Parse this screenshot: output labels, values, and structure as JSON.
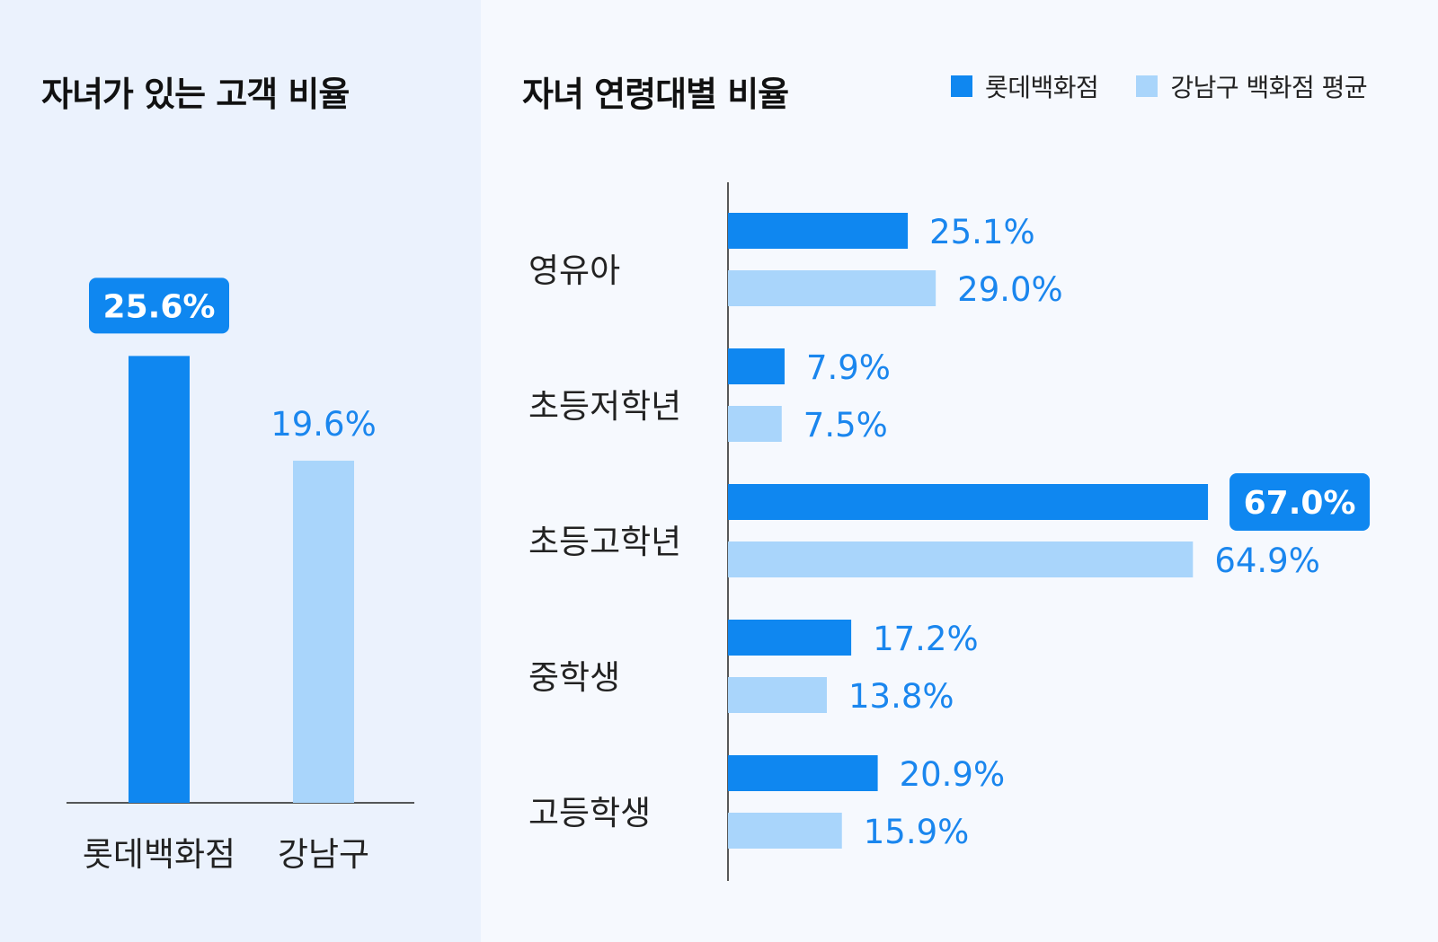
{
  "colors": {
    "primary": "#0f87f0",
    "secondary": "#a9d5fb",
    "label_text": "#1a86ee",
    "badge_text": "#ffffff",
    "axis": "#222222"
  },
  "left_title": "자녀가 있는 고객 비율",
  "right_title": "자녀 연령대별 비율",
  "legend": [
    {
      "label": "롯데백화점",
      "color": "#0f87f0"
    },
    {
      "label": "강남구 백화점 평균",
      "color": "#a9d5fb"
    }
  ],
  "chart_data": [
    {
      "type": "bar",
      "orientation": "vertical",
      "title": "자녀가 있는 고객 비율",
      "categories": [
        "롯데백화점",
        "강남구"
      ],
      "values": [
        25.6,
        19.6
      ],
      "labels": [
        "25.6%",
        "19.6%"
      ],
      "highlight_index": 0,
      "ylim": [
        0,
        32
      ],
      "grid": false
    },
    {
      "type": "bar",
      "orientation": "horizontal",
      "title": "자녀 연령대별 비율",
      "categories": [
        "영유아",
        "초등저학년",
        "초등고학년",
        "중학생",
        "고등학생"
      ],
      "series": [
        {
          "name": "롯데백화점",
          "values": [
            25.1,
            7.9,
            67.0,
            17.2,
            20.9
          ],
          "labels": [
            "25.1%",
            "7.9%",
            "67.0%",
            "17.2%",
            "20.9%"
          ]
        },
        {
          "name": "강남구 백화점 평균",
          "values": [
            29.0,
            7.5,
            64.9,
            13.8,
            15.9
          ],
          "labels": [
            "29.0%",
            "7.5%",
            "64.9%",
            "13.8%",
            "15.9%"
          ]
        }
      ],
      "highlight": {
        "series": 0,
        "index": 2
      },
      "xlim": [
        0,
        69
      ],
      "legend_position": "top-right",
      "grid": false
    }
  ]
}
